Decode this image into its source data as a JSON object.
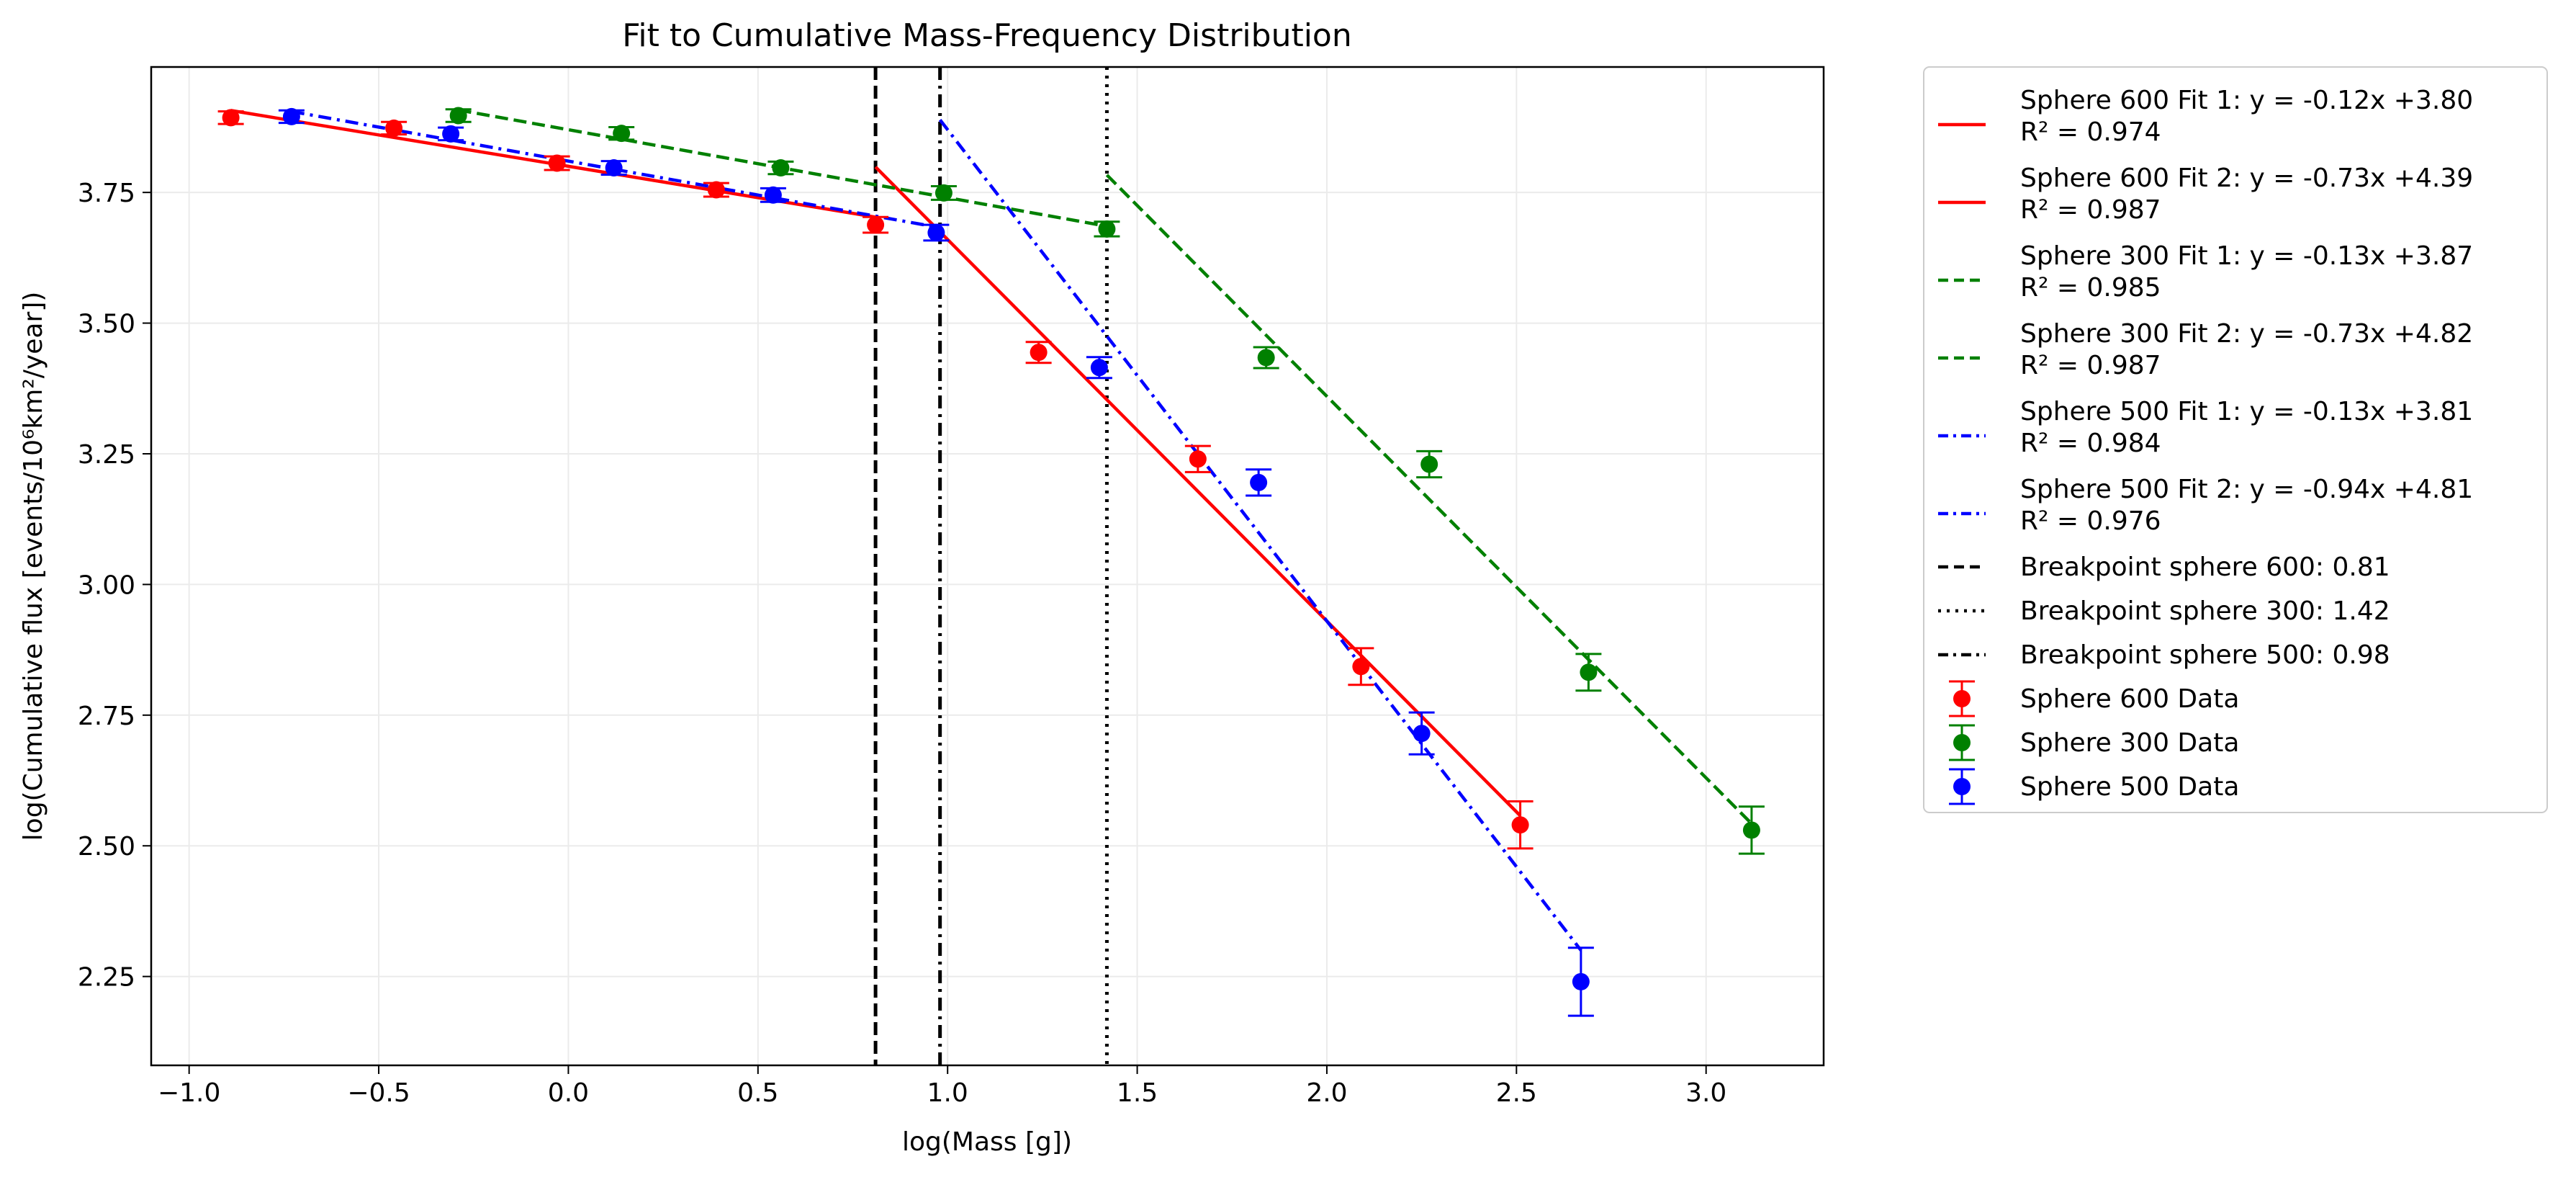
{
  "chart_data": {
    "type": "scatter",
    "title": "Fit to Cumulative Mass-Frequency Distribution",
    "xlabel": "log(Mass [g])",
    "ylabel": "log(Cumulative flux [events/10⁶km²/year])",
    "xlim": [
      -1.1,
      3.31
    ],
    "ylim": [
      2.08,
      3.99
    ],
    "xticks": [
      -1.0,
      -0.5,
      0.0,
      0.5,
      1.0,
      1.5,
      2.0,
      2.5,
      3.0
    ],
    "xtick_labels": [
      "−1.0",
      "−0.5",
      "0.0",
      "0.5",
      "1.0",
      "1.5",
      "2.0",
      "2.5",
      "3.0"
    ],
    "yticks": [
      2.25,
      2.5,
      2.75,
      3.0,
      3.25,
      3.5,
      3.75
    ],
    "ytick_labels": [
      "2.25",
      "2.50",
      "2.75",
      "3.00",
      "3.25",
      "3.50",
      "3.75"
    ],
    "grid": true,
    "legend_position": "outside-right",
    "data_series": [
      {
        "name": "Sphere 600 Data",
        "color": "#ff0000",
        "x": [
          -0.89,
          -0.46,
          -0.03,
          0.39,
          0.81,
          1.24,
          1.66,
          2.09,
          2.51
        ],
        "y": [
          3.893,
          3.873,
          3.806,
          3.755,
          3.688,
          3.444,
          3.24,
          2.843,
          2.54
        ],
        "err": [
          0.012,
          0.012,
          0.013,
          0.013,
          0.015,
          0.02,
          0.025,
          0.035,
          0.045
        ]
      },
      {
        "name": "Sphere 300 Data",
        "color": "#008000",
        "x": [
          -0.29,
          0.14,
          0.56,
          0.99,
          1.42,
          1.84,
          2.27,
          2.69,
          3.12
        ],
        "y": [
          3.897,
          3.863,
          3.797,
          3.749,
          3.68,
          3.434,
          3.23,
          2.832,
          2.53
        ],
        "err": [
          0.012,
          0.012,
          0.012,
          0.013,
          0.014,
          0.02,
          0.025,
          0.035,
          0.045
        ]
      },
      {
        "name": "Sphere 500 Data",
        "color": "#0000ff",
        "x": [
          -0.73,
          -0.31,
          0.12,
          0.54,
          0.97,
          1.4,
          1.82,
          2.25,
          2.67
        ],
        "y": [
          3.895,
          3.862,
          3.797,
          3.745,
          3.673,
          3.415,
          3.195,
          2.715,
          2.24
        ],
        "err": [
          0.012,
          0.012,
          0.013,
          0.013,
          0.015,
          0.02,
          0.025,
          0.04,
          0.065
        ]
      }
    ],
    "fit_lines": [
      {
        "label": "Sphere 600 Fit 1: y = -0.12x +3.80",
        "r2": "R² = 0.974",
        "color": "#ff0000",
        "style": "solid",
        "slope": -0.12,
        "intercept": 3.8,
        "x_range": [
          -0.89,
          0.81
        ]
      },
      {
        "label": "Sphere 600 Fit 2: y = -0.73x +4.39",
        "r2": "R² = 0.987",
        "color": "#ff0000",
        "style": "solid",
        "slope": -0.73,
        "intercept": 4.39,
        "x_range": [
          0.81,
          2.51
        ]
      },
      {
        "label": "Sphere 300 Fit 1: y = -0.13x +3.87",
        "r2": "R² = 0.985",
        "color": "#008000",
        "style": "dashed",
        "slope": -0.13,
        "intercept": 3.87,
        "x_range": [
          -0.29,
          1.42
        ]
      },
      {
        "label": "Sphere 300 Fit 2: y = -0.73x +4.82",
        "r2": "R² = 0.987",
        "color": "#008000",
        "style": "dashed",
        "slope": -0.73,
        "intercept": 4.82,
        "x_range": [
          1.42,
          3.12
        ]
      },
      {
        "label": "Sphere 500 Fit 1: y = -0.13x +3.81",
        "r2": "R² = 0.984",
        "color": "#0000ff",
        "style": "dashdot",
        "slope": -0.13,
        "intercept": 3.81,
        "x_range": [
          -0.73,
          0.98
        ]
      },
      {
        "label": "Sphere 500 Fit 2: y = -0.94x +4.81",
        "r2": "R² = 0.976",
        "color": "#0000ff",
        "style": "dashdot",
        "slope": -0.94,
        "intercept": 4.81,
        "x_range": [
          0.98,
          2.67
        ]
      }
    ],
    "breakpoints": [
      {
        "label": "Breakpoint sphere 600: 0.81",
        "x": 0.81,
        "style": "dashed"
      },
      {
        "label": "Breakpoint sphere 300: 1.42",
        "x": 1.42,
        "style": "dotted"
      },
      {
        "label": "Breakpoint sphere 500: 0.98",
        "x": 0.98,
        "style": "dashdot"
      }
    ]
  }
}
